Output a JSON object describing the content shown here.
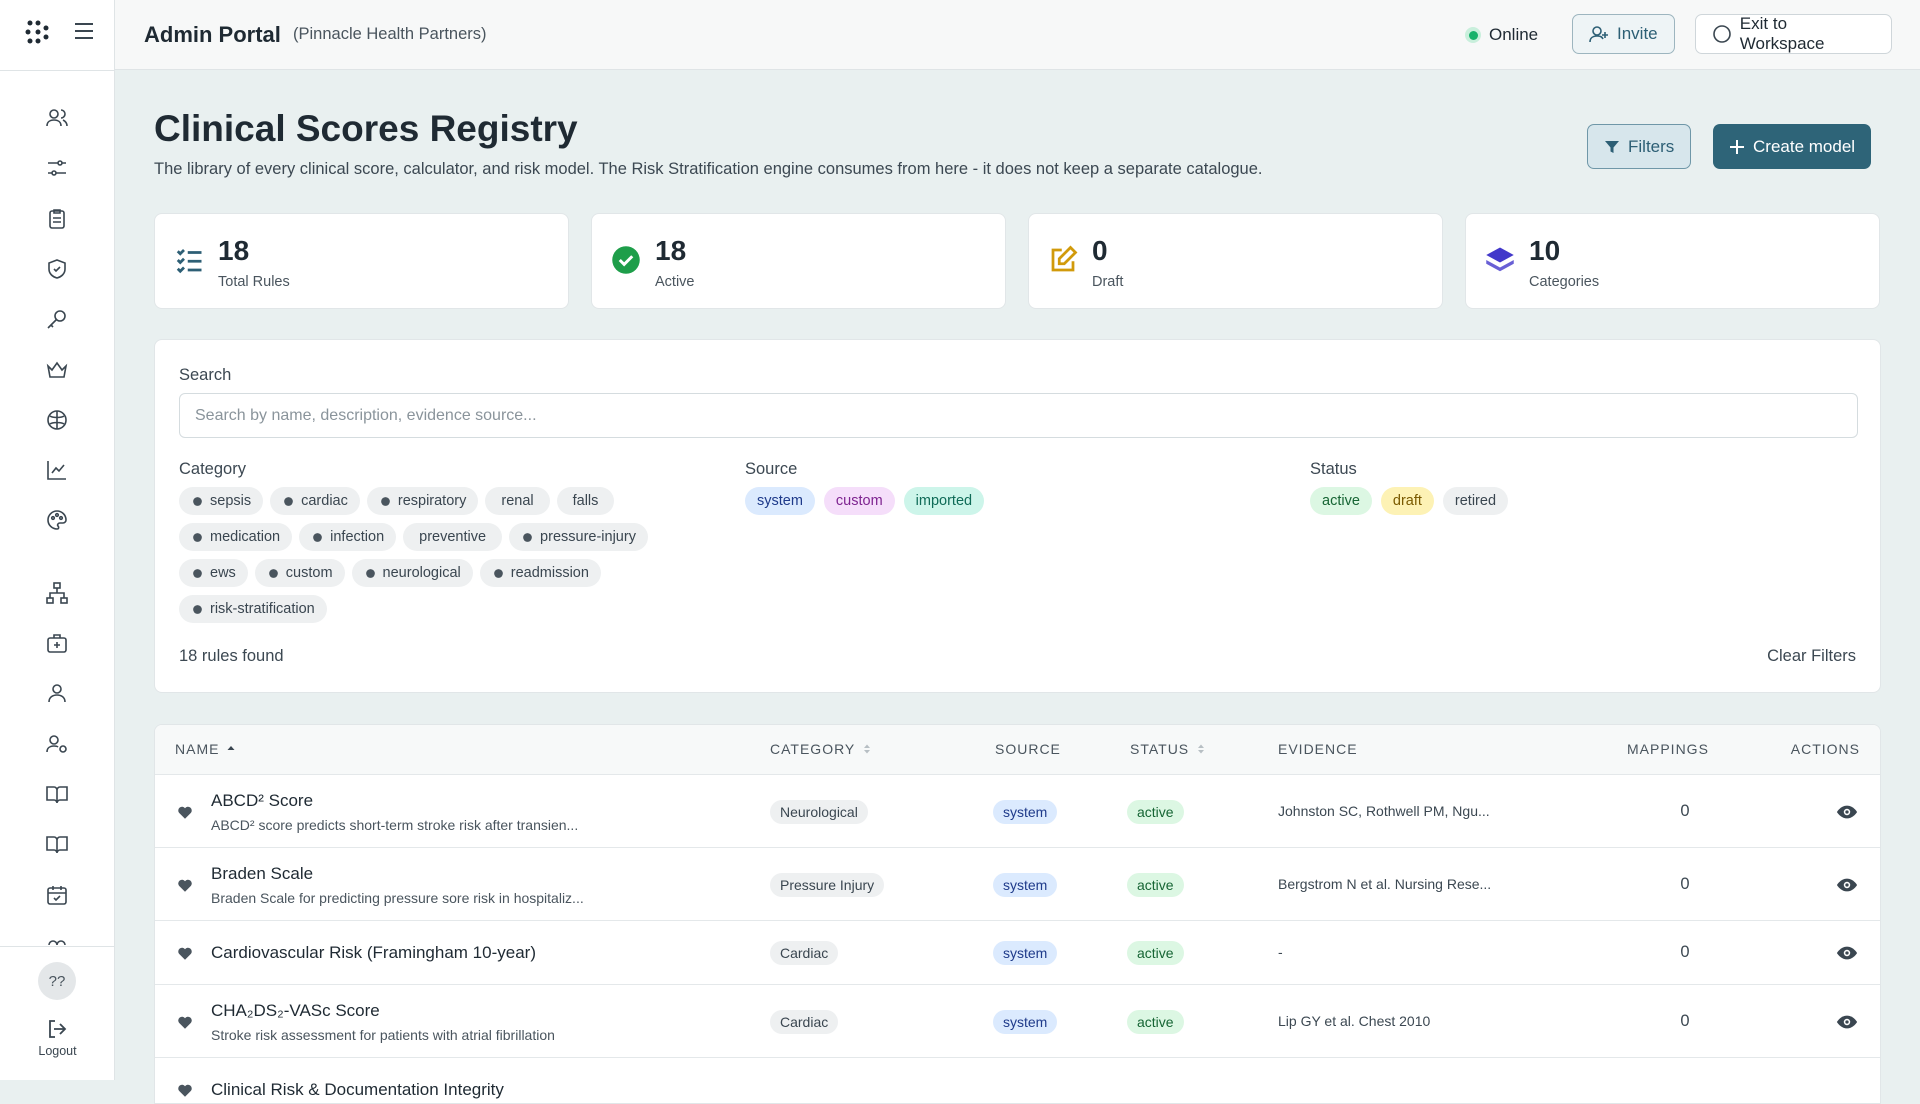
{
  "header": {
    "title": "Admin Portal",
    "org": "(Pinnacle Health Partners)",
    "status": "Online",
    "invite": "Invite",
    "exit": "Exit to Workspace"
  },
  "sidebar": {
    "avatar": "??",
    "logout": "Logout"
  },
  "page": {
    "title": "Clinical Scores Registry",
    "description": "The library of every clinical score, calculator, and risk model. The Risk Stratification engine consumes from here - it does not keep a separate catalogue.",
    "filters_button": "Filters",
    "create_button": "Create model"
  },
  "stats": [
    {
      "value": "18",
      "label": "Total Rules"
    },
    {
      "value": "18",
      "label": "Active"
    },
    {
      "value": "0",
      "label": "Draft"
    },
    {
      "value": "10",
      "label": "Categories"
    }
  ],
  "search": {
    "label": "Search",
    "placeholder": "Search by name, description, evidence source..."
  },
  "filters": {
    "category": {
      "label": "Category",
      "chips": [
        "sepsis",
        "cardiac",
        "respiratory",
        "renal",
        "falls",
        "medication",
        "infection",
        "preventive",
        "pressure-injury",
        "ews",
        "custom",
        "neurological",
        "readmission",
        "risk-stratification"
      ]
    },
    "source": {
      "label": "Source",
      "chips": [
        "system",
        "custom",
        "imported"
      ]
    },
    "status": {
      "label": "Status",
      "chips": [
        "active",
        "draft",
        "retired"
      ]
    }
  },
  "results": {
    "count": "18 rules found",
    "clear": "Clear Filters"
  },
  "table": {
    "columns": [
      "NAME",
      "CATEGORY",
      "SOURCE",
      "STATUS",
      "EVIDENCE",
      "MAPPINGS",
      "ACTIONS"
    ],
    "rows": [
      {
        "name": "ABCD² Score",
        "description": "ABCD² score predicts short-term stroke risk after transien...",
        "category": "Neurological",
        "source": "system",
        "status": "active",
        "evidence": "Johnston SC, Rothwell PM, Ngu...",
        "mappings": "0"
      },
      {
        "name": "Braden Scale",
        "description": "Braden Scale for predicting pressure sore risk in hospitaliz...",
        "category": "Pressure Injury",
        "source": "system",
        "status": "active",
        "evidence": "Bergstrom N et al. Nursing Rese...",
        "mappings": "0"
      },
      {
        "name": "Cardiovascular Risk (Framingham 10-year)",
        "category": "Cardiac",
        "source": "system",
        "status": "active",
        "evidence": "-",
        "mappings": "0"
      },
      {
        "name": "CHA₂DS₂-VASc Score",
        "description": "Stroke risk assessment for patients with atrial fibrillation",
        "category": "Cardiac",
        "source": "system",
        "status": "active",
        "evidence": "Lip GY et al. Chest 2010",
        "mappings": "0"
      },
      {
        "name": "Clinical Risk & Documentation Integrity"
      }
    ]
  }
}
